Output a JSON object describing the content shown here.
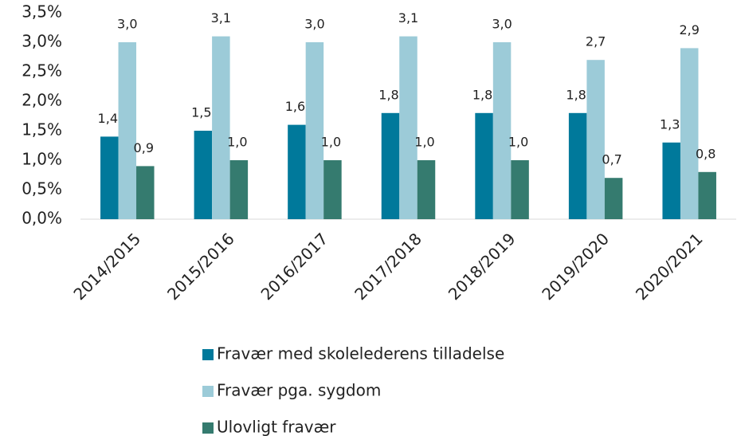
{
  "chart_data": {
    "type": "bar",
    "categories": [
      "2014/2015",
      "2015/2016",
      "2016/2017",
      "2017/2018",
      "2018/2019",
      "2019/2020",
      "2020/2021"
    ],
    "series": [
      {
        "name": "Fravær med skolelederens tilladelse",
        "color": "#00799b",
        "values": [
          1.4,
          1.5,
          1.6,
          1.8,
          1.8,
          1.8,
          1.3
        ],
        "value_labels": [
          "1,4",
          "1,5",
          "1,6",
          "1,8",
          "1,8",
          "1,8",
          "1,3"
        ]
      },
      {
        "name": "Fravær pga. sygdom",
        "color": "#9ccbd8",
        "values": [
          3.0,
          3.1,
          3.0,
          3.1,
          3.0,
          2.7,
          2.9
        ],
        "value_labels": [
          "3,0",
          "3,1",
          "3,0",
          "3,1",
          "3,0",
          "2,7",
          "2,9"
        ]
      },
      {
        "name": "Ulovligt fravær",
        "color": "#357b6f",
        "values": [
          0.9,
          1.0,
          1.0,
          1.0,
          1.0,
          0.7,
          0.8
        ],
        "value_labels": [
          "0,9",
          "1,0",
          "1,0",
          "1,0",
          "1,0",
          "0,7",
          "0,8"
        ]
      }
    ],
    "ylim": [
      0,
      3.5
    ],
    "yticks": [
      {
        "value": 0,
        "label": "0,0%"
      },
      {
        "value": 0.5,
        "label": "0,5%"
      },
      {
        "value": 1,
        "label": "1,0%"
      },
      {
        "value": 1.5,
        "label": "1,5%"
      },
      {
        "value": 2,
        "label": "2,0%"
      },
      {
        "value": 2.5,
        "label": "2,5%"
      },
      {
        "value": 3,
        "label": "3,0%"
      },
      {
        "value": 3.5,
        "label": "3,5%"
      }
    ],
    "grid": false,
    "legend": "bottom"
  }
}
